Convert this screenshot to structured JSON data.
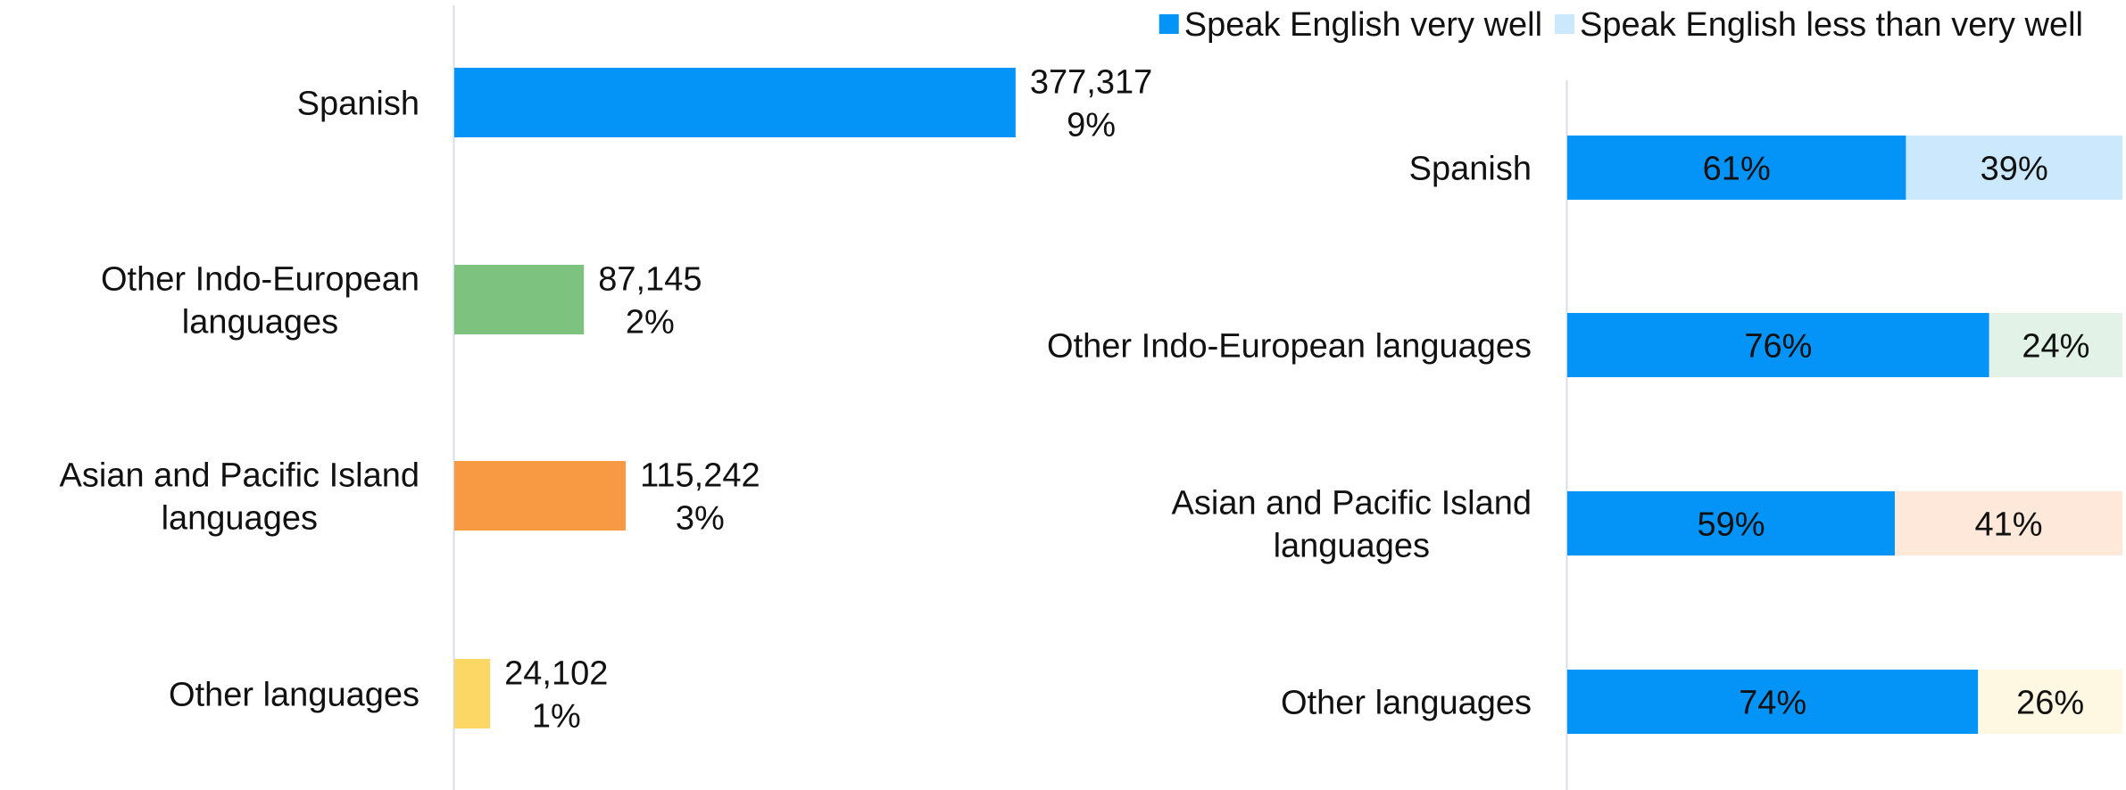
{
  "chart_data": [
    {
      "type": "bar",
      "orientation": "horizontal",
      "categories": [
        [
          "Spanish"
        ],
        [
          "Other Indo-European",
          "languages"
        ],
        [
          "Asian and Pacific Island",
          "languages"
        ],
        [
          "Other languages"
        ]
      ],
      "values": [
        377317,
        87145,
        115242,
        24102
      ],
      "value_labels": [
        "377,317",
        "87,145",
        "115,242",
        "24,102"
      ],
      "percent_labels": [
        "9%",
        "2%",
        "3%",
        "1%"
      ],
      "colors": [
        "#0494F7",
        "#7DC37F",
        "#F79A43",
        "#FDD766"
      ],
      "xlim": [
        0,
        600000
      ],
      "grid": false,
      "axis_color": "#D7DCEB"
    },
    {
      "type": "bar",
      "orientation": "horizontal",
      "stacked": true,
      "percent": true,
      "categories": [
        [
          "Spanish"
        ],
        [
          "Other Indo-European languages"
        ],
        [
          "Asian and Pacific Island",
          "languages"
        ],
        [
          "Other languages"
        ]
      ],
      "series": [
        {
          "name": "Speak English very well",
          "values": [
            61,
            76,
            59,
            74
          ],
          "labels": [
            "61%",
            "76%",
            "59%",
            "74%"
          ],
          "color": "#0494F7"
        },
        {
          "name": "Speak English less than very well",
          "values": [
            39,
            24,
            41,
            26
          ],
          "labels": [
            "39%",
            "24%",
            "41%",
            "26%"
          ],
          "colors": [
            "#CCE8FC",
            "#E3F2E6",
            "#FDE8D9",
            "#FEF7E2"
          ],
          "legend_color": "#CCE8FC"
        }
      ],
      "xlim": [
        0,
        100
      ],
      "legend_position": "top-right",
      "grid": false,
      "axis_color": "#D7DCEB"
    }
  ]
}
